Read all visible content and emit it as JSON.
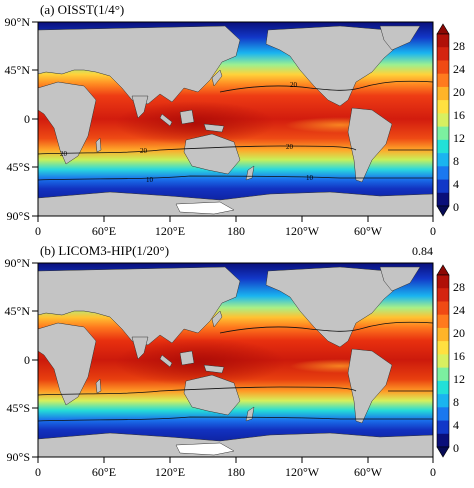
{
  "panels": [
    {
      "id": "a",
      "title": "(a) OISST(1/4°)",
      "corr": "",
      "xticks": [
        "0",
        "60°E",
        "120°E",
        "180",
        "120°W",
        "60°W",
        "0"
      ],
      "yticks": [
        "90°N",
        "45°N",
        "0",
        "45°S",
        "90°S"
      ],
      "contour_labels": [
        "20",
        "20",
        "20",
        "20",
        "10",
        "10"
      ]
    },
    {
      "id": "b",
      "title": "(b) LICOM3-HIP(1/20°)",
      "corr": "0.84",
      "xticks": [
        "0",
        "60°E",
        "120°E",
        "180",
        "120°W",
        "60°W",
        "0"
      ],
      "yticks": [
        "90°N",
        "45°N",
        "0",
        "45°S",
        "90°S"
      ],
      "contour_labels": []
    }
  ],
  "colorbar": {
    "ticks": [
      "28",
      "24",
      "20",
      "16",
      "12",
      "8",
      "4",
      "0"
    ],
    "colors": [
      "#0a0f7a",
      "#1238c8",
      "#1a78f0",
      "#1ab4f0",
      "#22e0d8",
      "#7cf0a0",
      "#d8f060",
      "#ffe040",
      "#ffb428",
      "#ff7a1e",
      "#f04a14",
      "#d42410",
      "#b01008"
    ]
  },
  "land_color": "#c4c4c4",
  "ice_color": "#ffffff"
}
